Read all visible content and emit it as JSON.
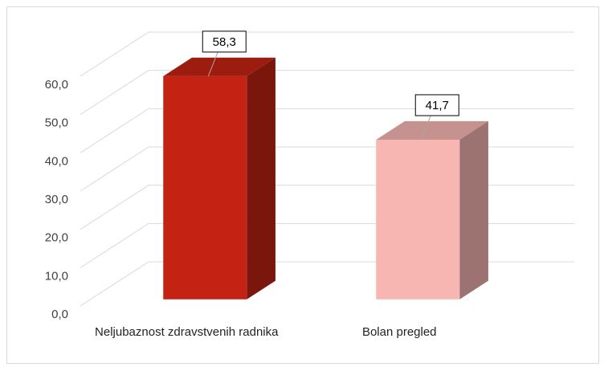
{
  "chart_data": {
    "type": "bar3d",
    "categories": [
      "Neljubaznost zdravstvenih radnika",
      "Bolan pregled"
    ],
    "values": [
      58.3,
      41.7
    ],
    "value_labels": [
      "58,3",
      "41,7"
    ],
    "colors": [
      "#c42314",
      "#f8b6b3"
    ],
    "ylim": [
      0,
      60
    ],
    "yticks": [
      {
        "value": 0,
        "label": "0,0"
      },
      {
        "value": 10,
        "label": "10,0"
      },
      {
        "value": 20,
        "label": "20,0"
      },
      {
        "value": 30,
        "label": "30,0"
      },
      {
        "value": 40,
        "label": "40,0"
      },
      {
        "value": 50,
        "label": "50,0"
      },
      {
        "value": 60,
        "label": "60,0"
      }
    ],
    "grid": true
  }
}
